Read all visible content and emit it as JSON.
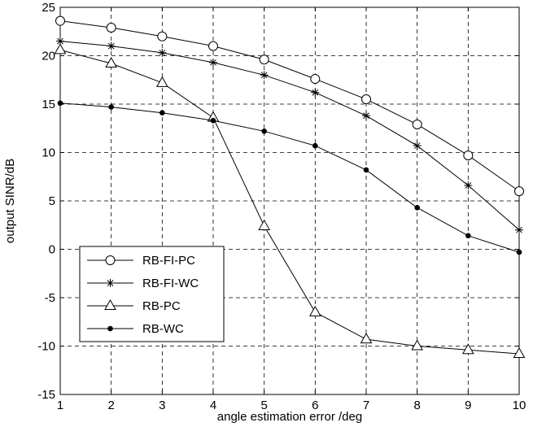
{
  "chart_data": {
    "type": "line",
    "xlabel": "angle estimation error /deg",
    "ylabel": "output SINR/dB",
    "xlim": [
      1,
      10
    ],
    "ylim": [
      -15,
      25
    ],
    "xticks": [
      1,
      2,
      3,
      4,
      5,
      6,
      7,
      8,
      9,
      10
    ],
    "yticks": [
      -15,
      -10,
      -5,
      0,
      5,
      10,
      15,
      20,
      25
    ],
    "grid": true,
    "legend_position": "lower-left",
    "x": [
      1,
      2,
      3,
      4,
      5,
      6,
      7,
      8,
      9,
      10
    ],
    "series": [
      {
        "name": "RB-FI-PC",
        "marker": "circle",
        "values": [
          23.6,
          22.9,
          22.0,
          21.0,
          19.6,
          17.6,
          15.5,
          12.9,
          9.7,
          6.0
        ]
      },
      {
        "name": "RB-FI-WC",
        "marker": "star",
        "values": [
          21.5,
          21.0,
          20.3,
          19.3,
          18.0,
          16.2,
          13.8,
          10.7,
          6.6,
          2.0
        ]
      },
      {
        "name": "RB-PC",
        "marker": "triangle",
        "values": [
          20.6,
          19.2,
          17.2,
          13.6,
          2.4,
          -6.5,
          -9.3,
          -10.0,
          -10.4,
          -10.8
        ]
      },
      {
        "name": "RB-WC",
        "marker": "dot",
        "values": [
          15.1,
          14.7,
          14.1,
          13.3,
          12.2,
          10.7,
          8.2,
          4.3,
          1.4,
          -0.3
        ]
      }
    ]
  }
}
